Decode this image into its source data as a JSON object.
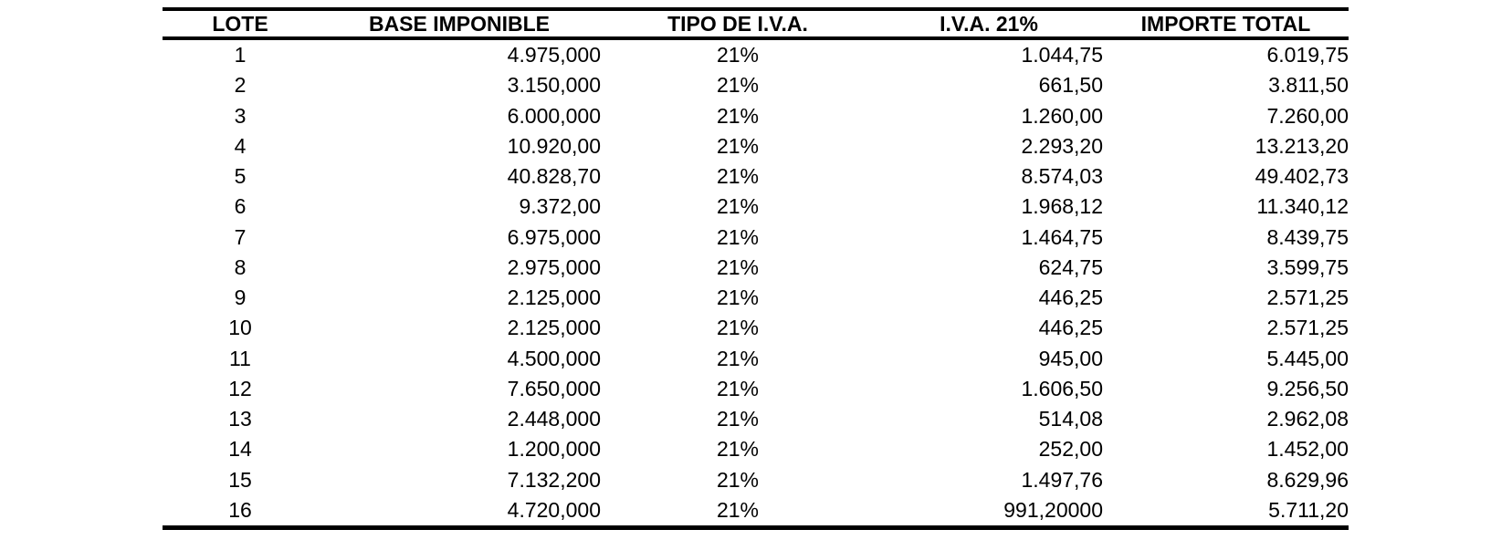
{
  "table": {
    "columns": [
      "LOTE",
      "BASE IMPONIBLE",
      "TIPO DE I.V.A.",
      "I.V.A. 21%",
      "IMPORTE TOTAL"
    ],
    "rows": [
      {
        "lote": "1",
        "base_imponible": "4.975,000",
        "tipo_iva": "21%",
        "iva_21": "1.044,75",
        "importe_total": "6.019,75"
      },
      {
        "lote": "2",
        "base_imponible": "3.150,000",
        "tipo_iva": "21%",
        "iva_21": "661,50",
        "importe_total": "3.811,50"
      },
      {
        "lote": "3",
        "base_imponible": "6.000,000",
        "tipo_iva": "21%",
        "iva_21": "1.260,00",
        "importe_total": "7.260,00"
      },
      {
        "lote": "4",
        "base_imponible": "10.920,00",
        "tipo_iva": "21%",
        "iva_21": "2.293,20",
        "importe_total": "13.213,20"
      },
      {
        "lote": "5",
        "base_imponible": "40.828,70",
        "tipo_iva": "21%",
        "iva_21": "8.574,03",
        "importe_total": "49.402,73"
      },
      {
        "lote": "6",
        "base_imponible": "9.372,00",
        "tipo_iva": "21%",
        "iva_21": "1.968,12",
        "importe_total": "11.340,12"
      },
      {
        "lote": "7",
        "base_imponible": "6.975,000",
        "tipo_iva": "21%",
        "iva_21": "1.464,75",
        "importe_total": "8.439,75"
      },
      {
        "lote": "8",
        "base_imponible": "2.975,000",
        "tipo_iva": "21%",
        "iva_21": "624,75",
        "importe_total": "3.599,75"
      },
      {
        "lote": "9",
        "base_imponible": "2.125,000",
        "tipo_iva": "21%",
        "iva_21": "446,25",
        "importe_total": "2.571,25"
      },
      {
        "lote": "10",
        "base_imponible": "2.125,000",
        "tipo_iva": "21%",
        "iva_21": "446,25",
        "importe_total": "2.571,25"
      },
      {
        "lote": "11",
        "base_imponible": "4.500,000",
        "tipo_iva": "21%",
        "iva_21": "945,00",
        "importe_total": "5.445,00"
      },
      {
        "lote": "12",
        "base_imponible": "7.650,000",
        "tipo_iva": "21%",
        "iva_21": "1.606,50",
        "importe_total": "9.256,50"
      },
      {
        "lote": "13",
        "base_imponible": "2.448,000",
        "tipo_iva": "21%",
        "iva_21": "514,08",
        "importe_total": "2.962,08"
      },
      {
        "lote": "14",
        "base_imponible": "1.200,000",
        "tipo_iva": "21%",
        "iva_21": "252,00",
        "importe_total": "1.452,00"
      },
      {
        "lote": "15",
        "base_imponible": "7.132,200",
        "tipo_iva": "21%",
        "iva_21": "1.497,76",
        "importe_total": "8.629,96"
      },
      {
        "lote": "16",
        "base_imponible": "4.720,000",
        "tipo_iva": "21%",
        "iva_21": "991,20000",
        "importe_total": "5.711,20"
      }
    ]
  },
  "chart_data": {
    "type": "table",
    "title": "",
    "columns": [
      "LOTE",
      "BASE IMPONIBLE",
      "TIPO DE I.V.A.",
      "I.V.A. 21%",
      "IMPORTE TOTAL"
    ]
  },
  "colors": {
    "text": "#000000",
    "background": "#ffffff",
    "rule": "#000000"
  }
}
